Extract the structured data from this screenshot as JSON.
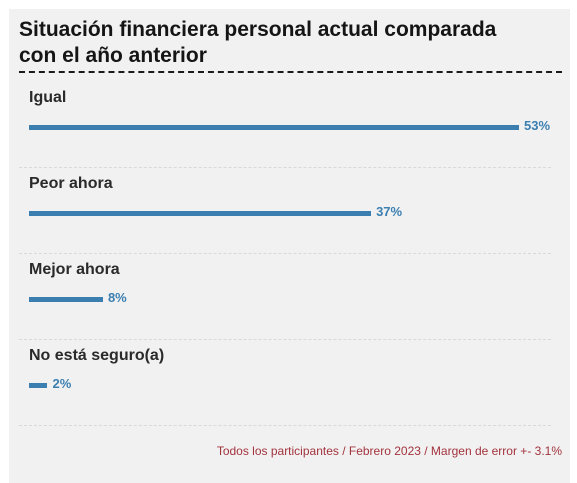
{
  "chart_data": {
    "type": "bar",
    "orientation": "horizontal",
    "title": "Situación financiera personal actual comparada con el año anterior",
    "categories": [
      "Igual",
      "Peor ahora",
      "Mejor ahora",
      "No está seguro(a)"
    ],
    "values": [
      53,
      37,
      8,
      2
    ],
    "value_labels": [
      "53%",
      "37%",
      "8%",
      "2%"
    ],
    "unit": "%",
    "xlim": [
      0,
      53
    ],
    "bar_color": "#3b7fb1",
    "grid": false,
    "footer": "Todos los participantes / Febrero 2023 / Margen de error +- 3.1%"
  },
  "colors": {
    "background": "#f1f1f1",
    "bar": "#3b7fb1",
    "footer": "#a3333d"
  }
}
